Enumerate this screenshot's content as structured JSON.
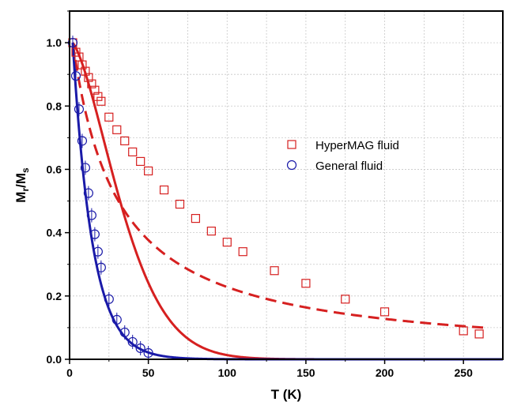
{
  "chart_data": {
    "type": "scatter",
    "xlabel": "T (K)",
    "ylabel": {
      "main": "M",
      "sub_r": "r",
      "slash": "/M",
      "sub_s": "s"
    },
    "xlim": [
      0,
      275
    ],
    "ylim": [
      0,
      1.1
    ],
    "xticks": [
      "0",
      "50",
      "100",
      "150",
      "200",
      "250"
    ],
    "yticks": [
      "0.0",
      "0.2",
      "0.4",
      "0.6",
      "0.8",
      "1.0"
    ],
    "grid": true,
    "legend_position": "right",
    "legend": [
      {
        "label": "HyperMAG fluid",
        "marker": "square",
        "color": "#d62020"
      },
      {
        "label": "General fluid",
        "marker": "circle",
        "color": "#1a1aa8"
      }
    ],
    "series": [
      {
        "name": "HyperMAG fluid",
        "marker": "square",
        "color": "#d62020",
        "x": [
          2,
          4,
          6,
          8,
          10,
          12,
          14,
          16,
          18,
          20,
          25,
          30,
          35,
          40,
          45,
          50,
          60,
          70,
          80,
          90,
          100,
          110,
          130,
          150,
          175,
          200,
          250,
          260
        ],
        "y": [
          1.0,
          0.97,
          0.955,
          0.93,
          0.91,
          0.89,
          0.87,
          0.85,
          0.83,
          0.815,
          0.765,
          0.725,
          0.69,
          0.655,
          0.625,
          0.595,
          0.535,
          0.49,
          0.445,
          0.405,
          0.37,
          0.34,
          0.28,
          0.24,
          0.19,
          0.15,
          0.09,
          0.08
        ]
      },
      {
        "name": "General fluid",
        "marker": "circle",
        "color": "#1a1aa8",
        "x": [
          2,
          4,
          6,
          8,
          10,
          12,
          14,
          16,
          18,
          20,
          25,
          30,
          35,
          40,
          45,
          50
        ],
        "y": [
          1.0,
          0.895,
          0.79,
          0.69,
          0.605,
          0.525,
          0.455,
          0.395,
          0.34,
          0.29,
          0.19,
          0.125,
          0.085,
          0.055,
          0.035,
          0.02
        ]
      }
    ],
    "fits": [
      {
        "style": "solid",
        "color": "#d62020",
        "x_range": [
          2,
          275
        ]
      },
      {
        "style": "dashed",
        "color": "#d62020",
        "x_range": [
          2,
          265
        ]
      },
      {
        "style": "solid",
        "color": "#1a1aa8",
        "x_range": [
          2,
          275
        ]
      }
    ]
  }
}
